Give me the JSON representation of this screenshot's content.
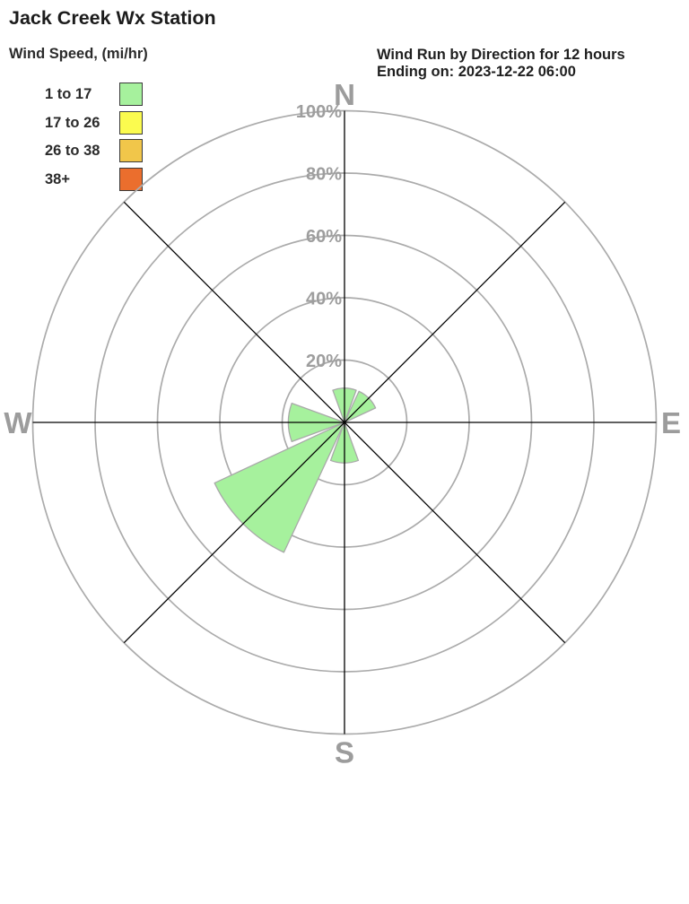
{
  "page_title": "Jack Creek Wx Station",
  "legend": {
    "title": "Wind Speed, (mi/hr)",
    "items": [
      {
        "label": "1 to 17",
        "color": "#A6F19D"
      },
      {
        "label": "17 to 26",
        "color": "#FBFB4F"
      },
      {
        "label": "26 to 38",
        "color": "#F1C64A"
      },
      {
        "label": "38+",
        "color": "#EB6E2D"
      }
    ]
  },
  "chart_data": {
    "type": "wind-rose",
    "title": "Wind Run by Direction for 12 hours",
    "subtitle": "Ending on: 2023-12-22 06:00",
    "units": "percent of wind run",
    "directions": [
      "N",
      "NE",
      "E",
      "SE",
      "S",
      "SW",
      "W",
      "NW"
    ],
    "compass_labels": [
      "N",
      "E",
      "S",
      "W"
    ],
    "ring_percents": [
      20,
      40,
      60,
      80,
      100
    ],
    "ring_labels": [
      "20%",
      "40%",
      "60%",
      "80%",
      "100%"
    ],
    "scale_max_percent": 100,
    "grid_on": true,
    "legend_position": "top-left",
    "series": [
      {
        "name": "1 to 17",
        "color": "#A6F19D",
        "values_percent": [
          11,
          11,
          0,
          0,
          13,
          46,
          18,
          0
        ]
      },
      {
        "name": "17 to 26",
        "color": "#FBFB4F",
        "values_percent": [
          0,
          0,
          0,
          0,
          0,
          0,
          0,
          0
        ]
      },
      {
        "name": "26 to 38",
        "color": "#F1C64A",
        "values_percent": [
          0,
          0,
          0,
          0,
          0,
          0,
          0,
          0
        ]
      },
      {
        "name": "38+",
        "color": "#EB6E2D",
        "values_percent": [
          0,
          0,
          0,
          0,
          0,
          0,
          0,
          0
        ]
      }
    ],
    "colors": {
      "grid_ring": "#ABABAB",
      "axis_line": "#000000",
      "compass_label": "#9C9C9C",
      "ring_label": "#9E9E9E",
      "petal_outline": "#A9A9A9"
    }
  }
}
